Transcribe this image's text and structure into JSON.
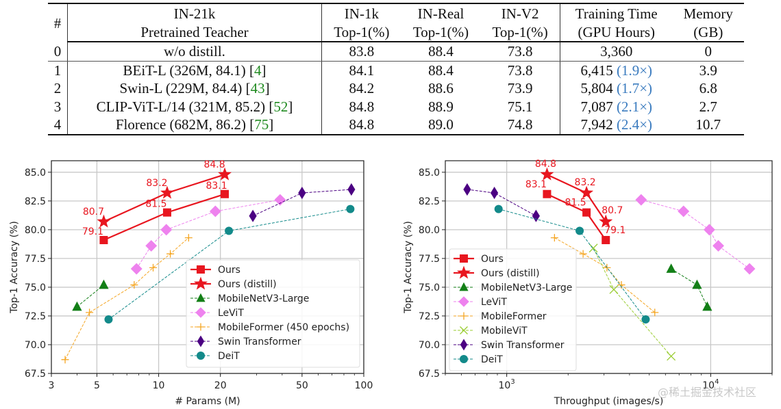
{
  "table": {
    "headers": [
      {
        "line1": "#",
        "line2": ""
      },
      {
        "line1": "IN-21k",
        "line2": "Pretrained Teacher"
      },
      {
        "line1": "IN-1k",
        "line2": "Top-1(%)"
      },
      {
        "line1": "IN-Real",
        "line2": "Top-1(%)"
      },
      {
        "line1": "IN-V2",
        "line2": "Top-1(%)"
      },
      {
        "line1": "Training Time",
        "line2": "(GPU Hours)"
      },
      {
        "line1": "Memory",
        "line2": "(GB)"
      }
    ],
    "rows": [
      {
        "idx": "0",
        "teacher": "w/o distill.",
        "cite": "",
        "in1k": "83.8",
        "inreal": "88.4",
        "inv2": "73.8",
        "time": "3,360",
        "ratio": "",
        "memory": "0"
      },
      {
        "idx": "1",
        "teacher": "BEiT-L (326M, 84.1) [",
        "cite": "4",
        "in1k": "84.1",
        "inreal": "88.4",
        "inv2": "73.8",
        "time": "6,415",
        "ratio": "(1.9×)",
        "memory": "3.9"
      },
      {
        "idx": "2",
        "teacher": "Swin-L (229M, 84.4) [",
        "cite": "43",
        "in1k": "84.2",
        "inreal": "88.6",
        "inv2": "73.9",
        "time": "5,804",
        "ratio": "(1.7×)",
        "memory": "6.8"
      },
      {
        "idx": "3",
        "teacher": "CLIP-ViT-L/14 (321M, 85.2) [",
        "cite": "52",
        "in1k": "84.8",
        "inreal": "88.9",
        "inv2": "75.1",
        "time": "7,087",
        "ratio": "(2.1×)",
        "memory": "2.7"
      },
      {
        "idx": "4",
        "teacher": "Florence (682M, 86.2) [",
        "cite": "75",
        "in1k": "84.8",
        "inreal": "89.0",
        "inv2": "74.8",
        "time": "7,942",
        "ratio": "(2.4×)",
        "memory": "10.7"
      }
    ],
    "cite_close": "]"
  },
  "chart_data": [
    {
      "type": "line",
      "id": "params",
      "xlabel": "# Params (M)",
      "ylabel": "Top-1 Accuracy (%)",
      "xscale": "log",
      "xlim": [
        3,
        100
      ],
      "ylim": [
        67.5,
        86.0
      ],
      "xticks": [
        3,
        5,
        10,
        20,
        50,
        100
      ],
      "xticklabels": [
        "3",
        "5",
        "10",
        "20",
        "50",
        "100"
      ],
      "yticks": [
        67.5,
        70.0,
        72.5,
        75.0,
        77.5,
        80.0,
        82.5,
        85.0
      ],
      "yticklabels": [
        "67.5",
        "70.0",
        "72.5",
        "75.0",
        "77.5",
        "80.0",
        "82.5",
        "85.0"
      ],
      "grid": true,
      "legend_position": "lower-right",
      "series": [
        {
          "name": "Ours",
          "marker": "square",
          "style": "solid",
          "color": "#e8161f",
          "x": [
            5.4,
            11.0,
            21.0
          ],
          "y": [
            79.1,
            81.5,
            83.1
          ],
          "labels": [
            "79.1",
            "81.5",
            "83.1"
          ]
        },
        {
          "name": "Ours (distill)",
          "marker": "star",
          "style": "solid",
          "color": "#e8161f",
          "x": [
            5.4,
            11.0,
            21.0
          ],
          "y": [
            80.7,
            83.2,
            84.8
          ],
          "labels": [
            "80.7",
            "83.2",
            "84.8"
          ]
        },
        {
          "name": "MobileNetV3-Large",
          "marker": "triangle",
          "style": "dashed",
          "color": "#137f17",
          "x": [
            4.0,
            5.4
          ],
          "y": [
            73.3,
            75.2
          ],
          "labels": []
        },
        {
          "name": "LeViT",
          "marker": "diamond",
          "style": "dashed",
          "color": "#ee82ee",
          "x": [
            7.8,
            9.2,
            10.9,
            18.9,
            39.1
          ],
          "y": [
            76.6,
            78.6,
            80.0,
            81.6,
            82.6
          ],
          "labels": []
        },
        {
          "name": "MobileFormer (450 epochs)",
          "marker": "plus",
          "style": "dashed",
          "color": "#f5a623",
          "x": [
            3.5,
            4.6,
            7.6,
            9.4,
            11.4,
            14.0
          ],
          "y": [
            68.7,
            72.8,
            75.2,
            76.7,
            77.9,
            79.3
          ],
          "labels": []
        },
        {
          "name": "Swin Transformer",
          "marker": "thin_diamond",
          "style": "dashed",
          "color": "#4b0082",
          "x": [
            28.8,
            50.0,
            87.0
          ],
          "y": [
            81.2,
            83.2,
            83.5
          ],
          "labels": []
        },
        {
          "name": "DeiT",
          "marker": "circle",
          "style": "dashed",
          "color": "#138a8a",
          "x": [
            5.7,
            22.0,
            86.0
          ],
          "y": [
            72.2,
            79.9,
            81.8
          ],
          "labels": []
        }
      ]
    },
    {
      "type": "line",
      "id": "throughput",
      "xlabel": "Throughput (images/s)",
      "ylabel": "Top-1 Accuracy (%)",
      "xscale": "log",
      "xlim": [
        500,
        20000
      ],
      "ylim": [
        67.5,
        86.0
      ],
      "xticks": [
        1000,
        10000
      ],
      "xticklabels": [
        "10^3",
        "10^4"
      ],
      "yticks": [
        67.5,
        70.0,
        72.5,
        75.0,
        77.5,
        80.0,
        82.5,
        85.0
      ],
      "yticklabels": [
        "67.5",
        "70.0",
        "72.5",
        "75.0",
        "77.5",
        "80.0",
        "82.5",
        "85.0"
      ],
      "grid": true,
      "legend_position": "lower-left",
      "series": [
        {
          "name": "Ours",
          "marker": "square",
          "style": "solid",
          "color": "#e8161f",
          "x": [
            1576,
            2462,
            3060
          ],
          "y": [
            83.1,
            81.5,
            79.1
          ],
          "labels": [
            "83.1",
            "81.5",
            "79.1"
          ]
        },
        {
          "name": "Ours (distill)",
          "marker": "star",
          "style": "solid",
          "color": "#e8161f",
          "x": [
            1576,
            2462,
            3060
          ],
          "y": [
            84.8,
            83.2,
            80.7
          ],
          "labels": [
            "84.8",
            "83.2",
            "80.7"
          ]
        },
        {
          "name": "MobileNetV3-Large",
          "marker": "triangle",
          "style": "dashed",
          "color": "#137f17",
          "x": [
            6400,
            8570,
            9620
          ],
          "y": [
            76.6,
            75.2,
            73.3
          ],
          "labels": []
        },
        {
          "name": "LeViT",
          "marker": "diamond",
          "style": "dashed",
          "color": "#ee82ee",
          "x": [
            4560,
            7360,
            9850,
            10900,
            15500
          ],
          "y": [
            82.6,
            81.6,
            80.0,
            78.6,
            76.6
          ],
          "labels": []
        },
        {
          "name": "MobileFormer",
          "marker": "plus",
          "style": "dashed",
          "color": "#f5a623",
          "x": [
            1715,
            2369,
            3100,
            3650,
            5320
          ],
          "y": [
            79.3,
            77.9,
            76.7,
            75.2,
            72.8
          ],
          "labels": []
        },
        {
          "name": "MobileViT",
          "marker": "x",
          "style": "dashed",
          "color": "#9acd32",
          "x": [
            2660,
            3350,
            6400
          ],
          "y": [
            78.4,
            74.8,
            69.0
          ],
          "labels": []
        },
        {
          "name": "Swin Transformer",
          "marker": "thin_diamond",
          "style": "dashed",
          "color": "#4b0082",
          "x": [
            640,
            870,
            1392
          ],
          "y": [
            83.5,
            83.2,
            81.2
          ],
          "labels": []
        },
        {
          "name": "DeiT",
          "marker": "circle",
          "style": "dashed",
          "color": "#138a8a",
          "x": [
            912,
            2278,
            4800
          ],
          "y": [
            81.8,
            79.9,
            72.2
          ],
          "labels": []
        }
      ]
    }
  ],
  "watermark": "@稀土掘金技术社区"
}
